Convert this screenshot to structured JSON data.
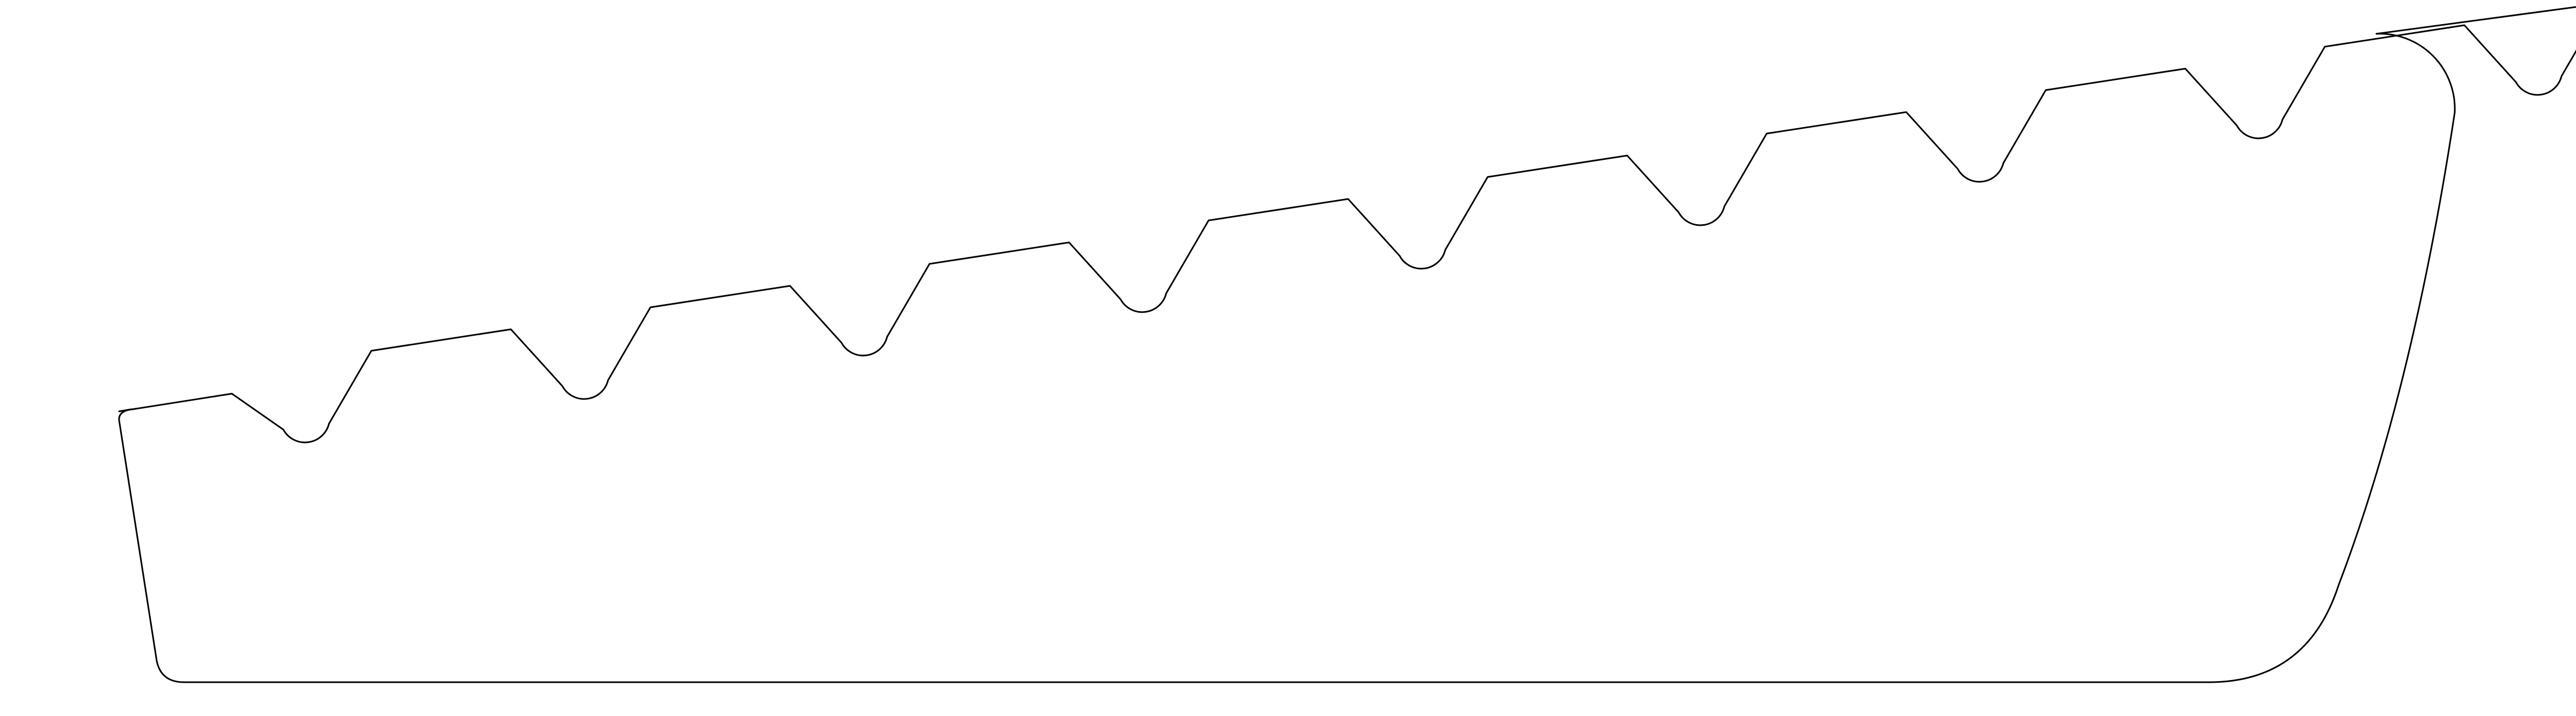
{
  "drawing": {
    "shape": "serrated-profile-outline",
    "tooth_count": 9,
    "stroke_color": "#000000",
    "fill_color": "#ffffff",
    "background_color": "#ffffff"
  }
}
